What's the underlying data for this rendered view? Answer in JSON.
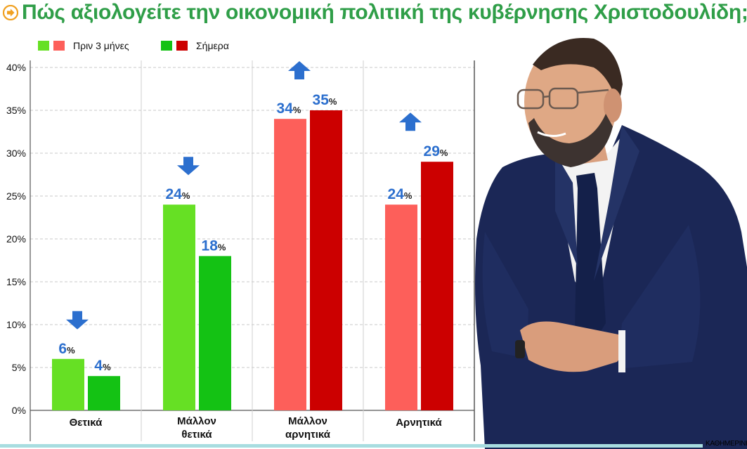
{
  "title": "Πώς αξιολογείτε την οικονομική πολιτική της κυβέρνησης Χριστοδουλίδη;",
  "credit": "ΚΑΘΗΜΕΡΙΝΗ",
  "icon": "arrow-circle-icon",
  "colors": {
    "title": "#2f9e48",
    "positive_before": "#66e024",
    "positive_now": "#14c214",
    "negative_before": "#fd5f5a",
    "negative_now": "#cc0000",
    "value_label": "#2c6fce",
    "arrow": "#2c6fce"
  },
  "chart_data": {
    "type": "bar",
    "categories": [
      "Θετικά",
      "Μάλλον θετικά",
      "Μάλλον αρνητικά",
      "Αρνητικά"
    ],
    "series": [
      {
        "name": "Πριν 3 μήνες",
        "values": [
          6,
          24,
          34,
          24
        ]
      },
      {
        "name": "Σήμερα",
        "values": [
          4,
          18,
          35,
          29
        ]
      }
    ],
    "value_labels": [
      [
        "6",
        "4"
      ],
      [
        "24",
        "18"
      ],
      [
        "34",
        "35"
      ],
      [
        "24",
        "29"
      ]
    ],
    "value_suffix": "%",
    "trend": [
      "down",
      "down",
      "up",
      "up"
    ],
    "y_ticks": [
      "0%",
      "5%",
      "10%",
      "15%",
      "20%",
      "25%",
      "30%",
      "35%",
      "40%"
    ],
    "ylim": [
      0,
      40
    ],
    "grid": true,
    "legend_position": "top-left",
    "title": "Πώς αξιολογείτε την οικονομική πολιτική της κυβέρνησης Χριστοδουλίδη;"
  }
}
